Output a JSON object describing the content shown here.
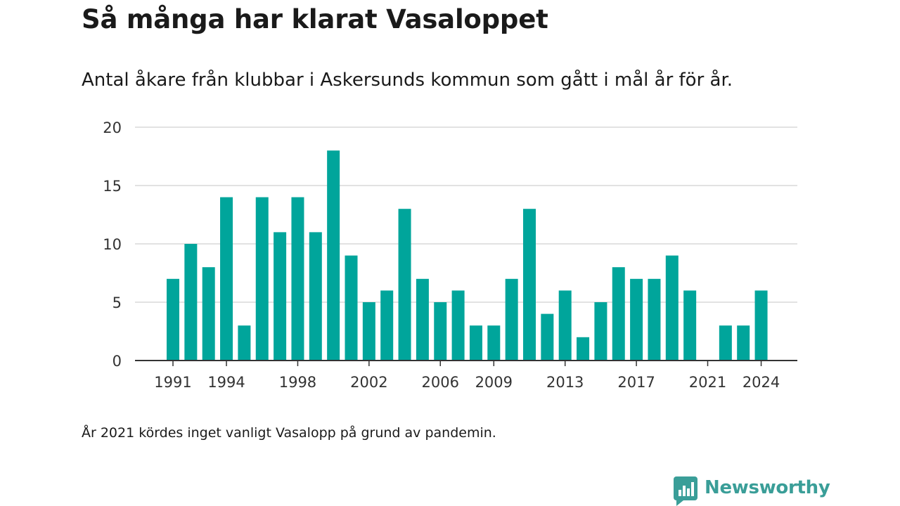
{
  "title": "Så många har klarat Vasaloppet",
  "subtitle": "Antal åkare från klubbar i Askersunds kommun som gått i mål år för år.",
  "footnote": "År 2021 kördes inget vanligt Vasalopp på grund av pandemin.",
  "brand": {
    "name": "Newsworthy",
    "icon": "newsworthy-logo-icon",
    "color": "#3a9e98"
  },
  "chart_data": {
    "type": "bar",
    "bar_color": "#00a59b",
    "x": [
      1991,
      1992,
      1993,
      1994,
      1995,
      1996,
      1997,
      1998,
      1999,
      2000,
      2001,
      2002,
      2003,
      2004,
      2005,
      2006,
      2007,
      2008,
      2009,
      2010,
      2011,
      2012,
      2013,
      2014,
      2015,
      2016,
      2017,
      2018,
      2019,
      2020,
      2021,
      2022,
      2023,
      2024
    ],
    "values": [
      7,
      10,
      8,
      14,
      3,
      14,
      11,
      14,
      11,
      18,
      9,
      5,
      6,
      13,
      7,
      5,
      6,
      3,
      3,
      7,
      13,
      4,
      6,
      2,
      5,
      8,
      7,
      7,
      9,
      6,
      0,
      3,
      3,
      6
    ],
    "x_tick_labels": [
      "1991",
      "1994",
      "1998",
      "2002",
      "2006",
      "2009",
      "2013",
      "2017",
      "2021",
      "2024"
    ],
    "y_ticks": [
      0,
      5,
      10,
      15,
      20
    ],
    "ylim": [
      0,
      20
    ],
    "grid": true
  }
}
